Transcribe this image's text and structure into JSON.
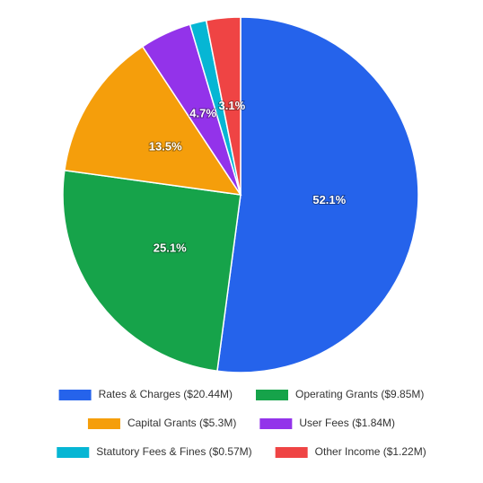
{
  "chart_data": {
    "type": "pie",
    "categories": [
      "Rates & Charges ($20.44M)",
      "Operating Grants ($9.85M)",
      "Capital Grants ($5.3M)",
      "User Fees ($1.84M)",
      "Statutory Fees & Fines ($0.57M)",
      "Other Income ($1.22M)"
    ],
    "values": [
      52.1,
      25.1,
      13.5,
      4.7,
      1.5,
      3.1
    ],
    "value_labels": [
      "52.1%",
      "25.1%",
      "13.5%",
      "4.7%",
      null,
      "3.1%"
    ],
    "colors": [
      "#2563eb",
      "#16a34a",
      "#f59e0b",
      "#9333ea",
      "#06b6d4",
      "#ef4444"
    ],
    "legend": "bottom"
  }
}
